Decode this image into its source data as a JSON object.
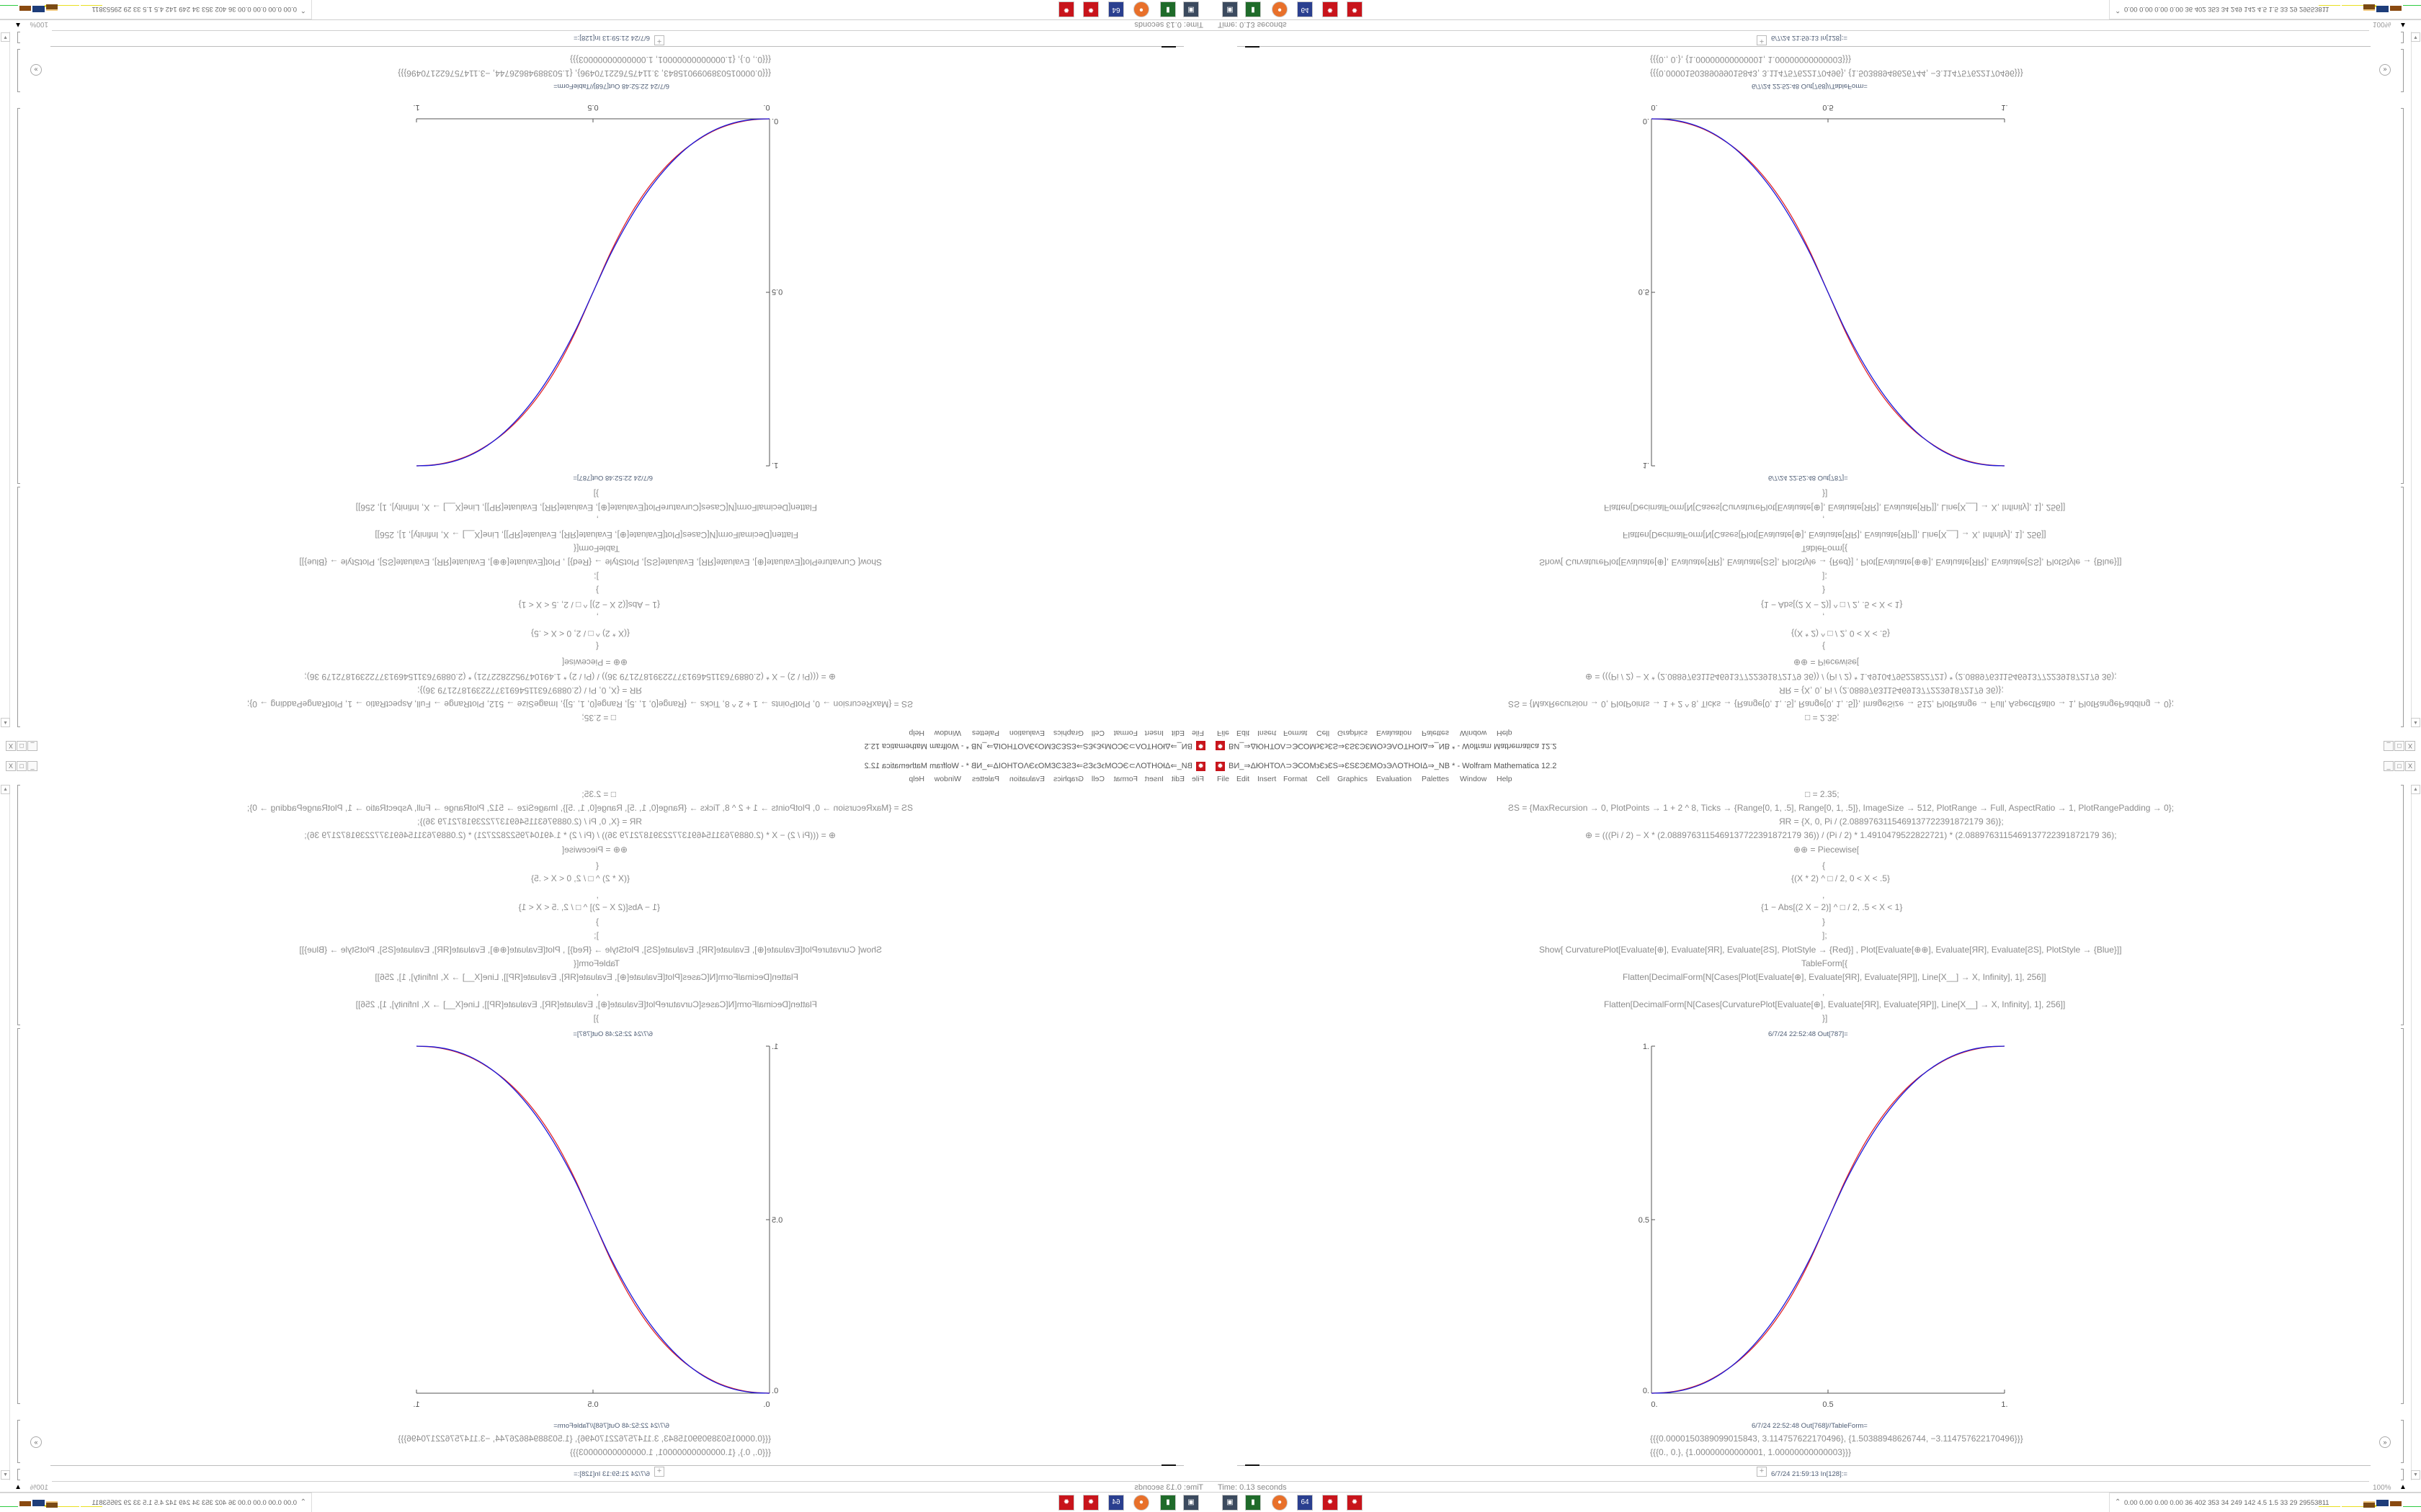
{
  "window": {
    "title": "ВИ_⇒ΔЮНТОΛ⊃ЭСОМ϶Ɛ϶ƐЅ⇒ƐЅƐϿƐМО϶ЭΛОТНОΙΔ⇒_NB * - Wolfram Mathematica 12.2",
    "minimize": "_",
    "maximize": "□",
    "close": "X"
  },
  "menu": [
    "File",
    "Edit",
    "Insert",
    "Format",
    "Cell",
    "Graphics",
    "Evaluation",
    "Palettes",
    "Window",
    "Help"
  ],
  "code_lines": [
    "□ = 2.35;",
    "ƧS = {MaxRecursion → 0, PlotPoints → 1 + 2 ^ 8, Ticks → {Range[0, 1, .5], Range[0, 1, .5]}, ImageSize → 512, PlotRange → Full, AspectRatio → 1, PlotRangePadding → 0};",
    "ЯR = {X, 0, Pi / (2.0889763115469137722391872179 36)};",
    "⊕ = (((Pi / 2) − X * (2.0889763115469137722391872179 36)) / (Pi / 2) * 1.4910479522822721) * (2.0889763115469137722391872179 36);",
    "⊕⊕ = Piecewise[",
    "{",
    "{(X * 2) ^ □ / 2, 0 < X < .5}",
    ",",
    "{1 − Abs[(2 X − 2)] ^ □ / 2, .5 < X < 1}",
    "}",
    "];",
    "Show[   CurvaturePlot[Evaluate[⊕], Evaluate[ЯR], Evaluate[ƧS], PlotStyle → {Red}]   ,   Plot[Evaluate[⊕⊕], Evaluate[ЯR], Evaluate[ƧS],  PlotStyle → {Blue}]]",
    "TableForm[{",
    "Flatten[DecimalForm[N[Cases[Plot[Evaluate[⊕], Evaluate[ЯR], Evaluate[ЯP]], Line[X__] → X, Infinity], 1], 256]]",
    ",",
    "Flatten[DecimalForm[N[Cases[CurvaturePlot[Evaluate[⊕], Evaluate[ЯR], Evaluate[ЯP]], Line[X__] → X, Infinity], 1], 256]]",
    "}]"
  ],
  "out_plot_label": "6/7/24 22:52:48 Out[787]=",
  "out_table_label": "6/7/24 22:52:48 Out[768]//TableForm=",
  "out_table_rows": [
    "{{{0.0000150389099015843, 3.114757622170496}, {1.50388948626744, −3.114757622170496}}}",
    "{{{0., 0.}, {1.00000000000001, 1.00000000000003}}}"
  ],
  "input_label": "6/7/24 21:59:13 In[128]:=",
  "status": {
    "time": "Time: 0.13 seconds",
    "zoom": "100%",
    "perf_text": "0.00 0.00 0.00 0.00  36  402  353  34  249  142  4.5  1.5  33  29  29553811"
  },
  "taskbar": [
    {
      "icon": "monitor-icon",
      "glyph": "▣",
      "color": "#3b4a5e"
    },
    {
      "icon": "terminal-icon",
      "glyph": "▮",
      "color": "#1f6b2a"
    },
    {
      "icon": "firefox-icon",
      "glyph": "●",
      "color": "#e8702a"
    },
    {
      "icon": "floppy-64-icon",
      "glyph": "64",
      "color": "#2a3f8f"
    },
    {
      "icon": "mathematica-icon",
      "glyph": "✹",
      "color": "#c8141b"
    },
    {
      "icon": "mathematica-icon",
      "glyph": "✹",
      "color": "#c8141b"
    }
  ],
  "colors": {
    "curvature_plot": "#e0242a",
    "plot": "#1a1adc",
    "accent": "#c8141b"
  },
  "chart_data": {
    "type": "line",
    "title": "",
    "xlabel": "",
    "ylabel": "",
    "xlim": [
      0,
      1
    ],
    "ylim": [
      0,
      1
    ],
    "x_ticks": [
      "0.",
      "0.5",
      "1."
    ],
    "y_ticks": [
      "0.",
      "0.5",
      "1."
    ],
    "grid": false,
    "x": [
      0,
      0.05,
      0.1,
      0.15,
      0.2,
      0.25,
      0.3,
      0.35,
      0.4,
      0.45,
      0.5,
      0.55,
      0.6,
      0.65,
      0.7,
      0.75,
      0.8,
      0.85,
      0.9,
      0.95,
      1
    ],
    "series": [
      {
        "style": "Red",
        "color": "#e0242a",
        "values": [
          0,
          0.003,
          0.013,
          0.031,
          0.059,
          0.096,
          0.145,
          0.208,
          0.287,
          0.385,
          0.5,
          0.615,
          0.713,
          0.792,
          0.855,
          0.904,
          0.941,
          0.969,
          0.987,
          0.997,
          1
        ]
      },
      {
        "style": "Blue",
        "color": "#1a1adc",
        "values": [
          0,
          0.0022,
          0.0114,
          0.0295,
          0.058,
          0.098,
          0.1505,
          0.216,
          0.296,
          0.39,
          0.5,
          0.61,
          0.704,
          0.784,
          0.8495,
          0.902,
          0.942,
          0.9705,
          0.9886,
          0.9978,
          1
        ]
      }
    ]
  }
}
